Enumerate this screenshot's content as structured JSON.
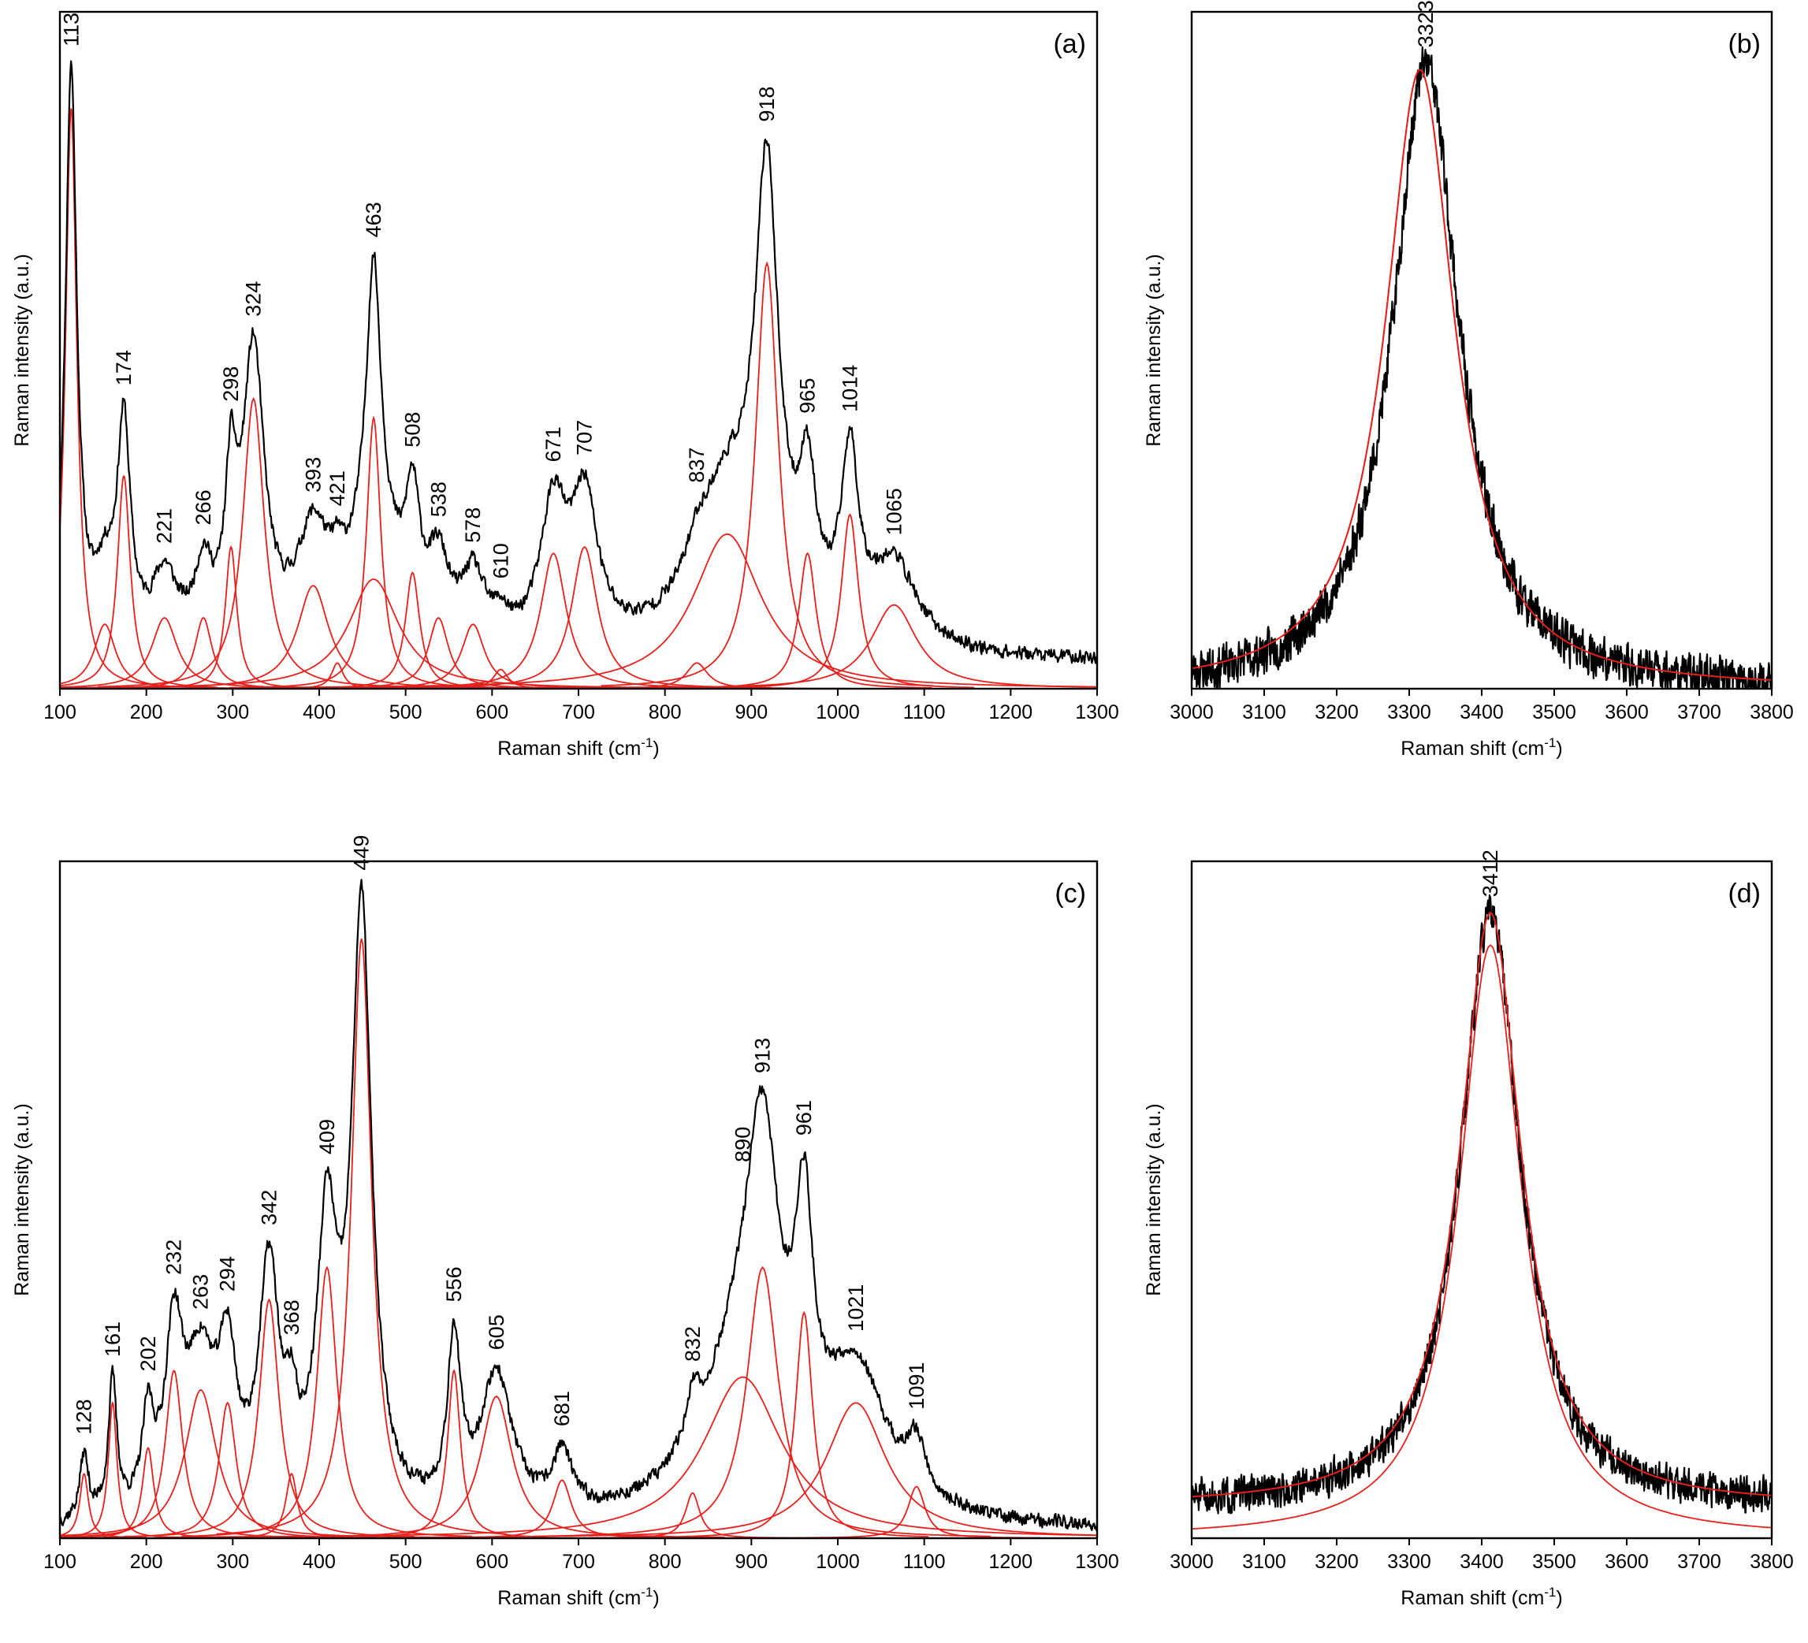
{
  "chart_data": [
    {
      "id": "a",
      "panel_label": "(a)",
      "type": "line",
      "xlabel": "Raman shift (cm",
      "xlabel_sup": "-1",
      "xlabel_close": ")",
      "ylabel": "Raman intensity (a.u.)",
      "xlim": [
        100,
        1300
      ],
      "ylim": [
        0,
        1.05
      ],
      "xticks": [
        100,
        200,
        300,
        400,
        500,
        600,
        700,
        800,
        900,
        1000,
        1100,
        1200,
        1300
      ],
      "xticklabels": [
        "100",
        "200",
        "300",
        "400",
        "500",
        "600",
        "700",
        "800",
        "900",
        "1000",
        "1100",
        "1200",
        "1300"
      ],
      "baseline": 0.04,
      "noise": 0.006,
      "seed": 11,
      "experimental_color": "#000000",
      "fit_color": "#e8201c",
      "peaks": [
        {
          "pos": 113,
          "amp": 0.9,
          "width": 8,
          "label": "113"
        },
        {
          "pos": 152,
          "amp": 0.1,
          "width": 15
        },
        {
          "pos": 174,
          "amp": 0.33,
          "width": 9,
          "label": "174"
        },
        {
          "pos": 221,
          "amp": 0.11,
          "width": 18,
          "label": "221"
        },
        {
          "pos": 266,
          "amp": 0.11,
          "width": 12,
          "label": "266"
        },
        {
          "pos": 298,
          "amp": 0.22,
          "width": 8,
          "label": "298"
        },
        {
          "pos": 324,
          "amp": 0.45,
          "width": 15,
          "label": "324"
        },
        {
          "pos": 393,
          "amp": 0.16,
          "width": 22,
          "label": "393"
        },
        {
          "pos": 421,
          "amp": 0.04,
          "width": 8,
          "label": "421"
        },
        {
          "pos": 463,
          "amp": 0.17,
          "width": 35
        },
        {
          "pos": 463,
          "amp": 0.42,
          "width": 10,
          "label": "463"
        },
        {
          "pos": 508,
          "amp": 0.18,
          "width": 10,
          "label": "508"
        },
        {
          "pos": 538,
          "amp": 0.11,
          "width": 14,
          "label": "538"
        },
        {
          "pos": 578,
          "amp": 0.1,
          "width": 16,
          "label": "578"
        },
        {
          "pos": 610,
          "amp": 0.03,
          "width": 10,
          "label": "610"
        },
        {
          "pos": 671,
          "amp": 0.21,
          "width": 18,
          "label": "671"
        },
        {
          "pos": 707,
          "amp": 0.22,
          "width": 18,
          "label": "707"
        },
        {
          "pos": 872,
          "amp": 0.24,
          "width": 48
        },
        {
          "pos": 837,
          "amp": 0.04,
          "width": 15,
          "label": "837"
        },
        {
          "pos": 918,
          "amp": 0.66,
          "width": 16,
          "label": "918"
        },
        {
          "pos": 965,
          "amp": 0.21,
          "width": 12,
          "label": "965"
        },
        {
          "pos": 1014,
          "amp": 0.27,
          "width": 12,
          "label": "1014"
        },
        {
          "pos": 1065,
          "amp": 0.13,
          "width": 32,
          "label": "1065"
        }
      ],
      "fitted_components": [
        {
          "pos": 113,
          "amp": 0.9,
          "width": 8
        },
        {
          "pos": 152,
          "amp": 0.1,
          "width": 15
        },
        {
          "pos": 174,
          "amp": 0.33,
          "width": 9
        },
        {
          "pos": 221,
          "amp": 0.11,
          "width": 18
        },
        {
          "pos": 266,
          "amp": 0.11,
          "width": 12
        },
        {
          "pos": 298,
          "amp": 0.22,
          "width": 8
        },
        {
          "pos": 324,
          "amp": 0.45,
          "width": 15
        },
        {
          "pos": 393,
          "amp": 0.16,
          "width": 22
        },
        {
          "pos": 421,
          "amp": 0.04,
          "width": 8
        },
        {
          "pos": 463,
          "amp": 0.17,
          "width": 35
        },
        {
          "pos": 463,
          "amp": 0.42,
          "width": 10
        },
        {
          "pos": 508,
          "amp": 0.18,
          "width": 10
        },
        {
          "pos": 538,
          "amp": 0.11,
          "width": 14
        },
        {
          "pos": 578,
          "amp": 0.1,
          "width": 16
        },
        {
          "pos": 610,
          "amp": 0.03,
          "width": 10
        },
        {
          "pos": 671,
          "amp": 0.21,
          "width": 18
        },
        {
          "pos": 707,
          "amp": 0.22,
          "width": 18
        },
        {
          "pos": 872,
          "amp": 0.24,
          "width": 48
        },
        {
          "pos": 837,
          "amp": 0.04,
          "width": 15
        },
        {
          "pos": 918,
          "amp": 0.66,
          "width": 16
        },
        {
          "pos": 965,
          "amp": 0.21,
          "width": 12
        },
        {
          "pos": 1014,
          "amp": 0.27,
          "width": 12
        },
        {
          "pos": 1065,
          "amp": 0.13,
          "width": 32
        }
      ]
    },
    {
      "id": "b",
      "panel_label": "(b)",
      "type": "line",
      "xlabel": "Raman shift (cm",
      "xlabel_sup": "-1",
      "xlabel_close": ")",
      "ylabel": "Raman intensity (a.u.)",
      "xlim": [
        3000,
        3800
      ],
      "ylim": [
        0,
        1.05
      ],
      "xticks": [
        3000,
        3100,
        3200,
        3300,
        3400,
        3500,
        3600,
        3700,
        3800
      ],
      "xticklabels": [
        "3000",
        "3100",
        "3200",
        "3300",
        "3400",
        "3500",
        "3600",
        "3700",
        "3800"
      ],
      "baseline": 0.0,
      "noise": 0.018,
      "seed": 23,
      "experimental_color": "#000000",
      "fit_color": "#e8201c",
      "peaks": [
        {
          "pos": 3323,
          "amp": 0.97,
          "width": 55,
          "label": "3323"
        }
      ],
      "fitted_components": [
        {
          "pos": 3315,
          "amp": 0.96,
          "width": 58
        }
      ]
    },
    {
      "id": "c",
      "panel_label": "(c)",
      "type": "line",
      "xlabel": "Raman shift (cm",
      "xlabel_sup": "-1",
      "xlabel_close": ")",
      "ylabel": "Raman intensity (a.u.)",
      "xlim": [
        100,
        1300
      ],
      "ylim": [
        0,
        1.05
      ],
      "xticks": [
        100,
        200,
        300,
        400,
        500,
        600,
        700,
        800,
        900,
        1000,
        1100,
        1200,
        1300
      ],
      "xticklabels": [
        "100",
        "200",
        "300",
        "400",
        "500",
        "600",
        "700",
        "800",
        "900",
        "1000",
        "1100",
        "1200",
        "1300"
      ],
      "baseline": 0.01,
      "noise": 0.006,
      "seed": 37,
      "experimental_color": "#000000",
      "fit_color": "#e8201c",
      "peaks": [
        {
          "pos": 128,
          "amp": 0.1,
          "width": 6,
          "label": "128"
        },
        {
          "pos": 161,
          "amp": 0.21,
          "width": 6,
          "label": "161"
        },
        {
          "pos": 202,
          "amp": 0.14,
          "width": 8,
          "label": "202"
        },
        {
          "pos": 232,
          "amp": 0.26,
          "width": 12,
          "label": "232"
        },
        {
          "pos": 263,
          "amp": 0.23,
          "width": 22,
          "label": "263"
        },
        {
          "pos": 294,
          "amp": 0.21,
          "width": 12,
          "label": "294"
        },
        {
          "pos": 342,
          "amp": 0.37,
          "width": 14,
          "label": "342"
        },
        {
          "pos": 368,
          "amp": 0.1,
          "width": 8,
          "label": "368"
        },
        {
          "pos": 409,
          "amp": 0.42,
          "width": 14,
          "label": "409"
        },
        {
          "pos": 449,
          "amp": 0.93,
          "width": 14,
          "label": "449"
        },
        {
          "pos": 556,
          "amp": 0.26,
          "width": 9,
          "label": "556"
        },
        {
          "pos": 605,
          "amp": 0.22,
          "width": 22,
          "label": "605"
        },
        {
          "pos": 681,
          "amp": 0.09,
          "width": 13,
          "label": "681"
        },
        {
          "pos": 832,
          "amp": 0.07,
          "width": 10,
          "label": "832"
        },
        {
          "pos": 890,
          "amp": 0.25,
          "width": 55,
          "label": "890"
        },
        {
          "pos": 913,
          "amp": 0.42,
          "width": 22,
          "label": "913"
        },
        {
          "pos": 961,
          "amp": 0.35,
          "width": 12,
          "label": "961"
        },
        {
          "pos": 1021,
          "amp": 0.21,
          "width": 42,
          "label": "1021"
        },
        {
          "pos": 1091,
          "amp": 0.08,
          "width": 12,
          "label": "1091"
        }
      ],
      "fitted_components": [
        {
          "pos": 128,
          "amp": 0.1,
          "width": 6
        },
        {
          "pos": 161,
          "amp": 0.21,
          "width": 6
        },
        {
          "pos": 202,
          "amp": 0.14,
          "width": 8
        },
        {
          "pos": 232,
          "amp": 0.26,
          "width": 12
        },
        {
          "pos": 263,
          "amp": 0.23,
          "width": 22
        },
        {
          "pos": 294,
          "amp": 0.21,
          "width": 12
        },
        {
          "pos": 342,
          "amp": 0.37,
          "width": 14
        },
        {
          "pos": 368,
          "amp": 0.1,
          "width": 8
        },
        {
          "pos": 409,
          "amp": 0.42,
          "width": 14
        },
        {
          "pos": 449,
          "amp": 0.93,
          "width": 14
        },
        {
          "pos": 556,
          "amp": 0.26,
          "width": 9
        },
        {
          "pos": 605,
          "amp": 0.22,
          "width": 22
        },
        {
          "pos": 681,
          "amp": 0.09,
          "width": 13
        },
        {
          "pos": 832,
          "amp": 0.07,
          "width": 10
        },
        {
          "pos": 890,
          "amp": 0.25,
          "width": 55
        },
        {
          "pos": 913,
          "amp": 0.42,
          "width": 22
        },
        {
          "pos": 961,
          "amp": 0.35,
          "width": 12
        },
        {
          "pos": 1021,
          "amp": 0.21,
          "width": 42
        },
        {
          "pos": 1091,
          "amp": 0.08,
          "width": 12
        }
      ]
    },
    {
      "id": "d",
      "panel_label": "(d)",
      "type": "line",
      "xlabel": "Raman shift (cm",
      "xlabel_sup": "-1",
      "xlabel_close": ")",
      "ylabel": "Raman intensity (a.u.)",
      "xlim": [
        3000,
        3800
      ],
      "ylim": [
        0,
        1.05
      ],
      "xticks": [
        3000,
        3100,
        3200,
        3300,
        3400,
        3500,
        3600,
        3700,
        3800
      ],
      "xticklabels": [
        "3000",
        "3100",
        "3200",
        "3300",
        "3400",
        "3500",
        "3600",
        "3700",
        "3800"
      ],
      "baseline": 0.05,
      "noise": 0.015,
      "seed": 51,
      "experimental_color": "#000000",
      "fit_color": "#e8201c",
      "peaks": [
        {
          "pos": 3412,
          "amp": 0.92,
          "width": 50,
          "label": "3412"
        }
      ],
      "fitted_components": [
        {
          "pos": 3412,
          "amp": 0.92,
          "width": 52
        }
      ]
    }
  ]
}
